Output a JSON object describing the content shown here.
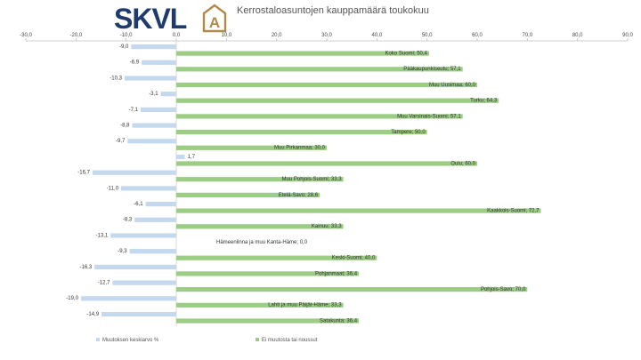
{
  "header": {
    "logo_text": "SKVL",
    "title": "Kerrostaloasuntojen kauppamäärä toukokuu"
  },
  "chart_data": {
    "type": "bar",
    "orientation": "horizontal",
    "title": "Kerrostaloasuntojen kauppamäärä toukokuu",
    "xlim": [
      -30,
      90
    ],
    "xticks": [
      -30,
      -20,
      -10,
      0,
      10,
      20,
      30,
      40,
      50,
      60,
      70,
      80,
      90
    ],
    "xtick_labels": [
      "-30,0",
      "-20,0",
      "-10,0",
      "0,0",
      "10,0",
      "20,0",
      "30,0",
      "40,0",
      "50,0",
      "60,0",
      "70,0",
      "80,0",
      "90,0"
    ],
    "legend_position": "bottom",
    "categories": [
      "Koko Suomi",
      "Pääkaupunkiseutu",
      "Muu Uusimaa",
      "Turku",
      "Muu Varsinais-Suomi",
      "Tampere",
      "Muu Pirkanmaa",
      "Oulu",
      "Muu Pohjois-Suomi",
      "Etelä-Savo",
      "Kaakkois-Suomi",
      "Kainuu",
      "Hämeenlinna ja muu Kanta-Häme",
      "Keski-Suomi",
      "Pohjanmaat",
      "Pohjois-Savo",
      "Lahti ja muu Päijät-Häme",
      "Satakunta"
    ],
    "series": [
      {
        "name": "Muutoksen keskiarvo %",
        "color": "#c5d9ee",
        "values": [
          -9.0,
          -6.9,
          -10.3,
          -3.1,
          -7.1,
          -8.8,
          -9.7,
          1.7,
          -16.7,
          -11.0,
          -6.1,
          -8.3,
          -13.1,
          -9.3,
          -16.3,
          -12.7,
          -19.0,
          -14.9
        ],
        "labels": [
          "-9,0",
          "-6,9",
          "-10,3",
          "-3,1",
          "-7,1",
          "-8,8",
          "-9,7",
          "1,7",
          "-16,7",
          "-11,0",
          "-6,1",
          "-8,3",
          "-13,1",
          "-9,3",
          "-16,3",
          "-12,7",
          "-19,0",
          "-14,9"
        ]
      },
      {
        "name": "Ei muutosta tai noussut",
        "color": "#9bcd84",
        "values": [
          50.4,
          57.1,
          60.0,
          64.3,
          57.1,
          50.0,
          30.0,
          60.0,
          33.3,
          28.6,
          72.7,
          33.3,
          0.0,
          40.0,
          36.4,
          70.0,
          33.3,
          36.4
        ],
        "labels": [
          "Koko Suomi; 50,4",
          "Pääkaupunkiseutu; 57,1",
          "Muu Uusimaa; 60,0",
          "Turku; 64,3",
          "Muu Varsinais-Suomi; 57,1",
          "Tampere; 50,0",
          "Muu Pirkanmaa; 30,0",
          "Oulu; 60,0",
          "Muu Pohjois-Suomi; 33,3",
          "Etelä-Savo; 28,6",
          "Kaakkois-Suomi; 72,7",
          "Kainuu; 33,3",
          "Hämeenlinna ja muu Kanta-Häme; 0,0",
          "Keski-Suomi; 40,0",
          "Pohjanmaat; 36,4",
          "Pohjois-Savo; 70,0",
          "Lahti ja muu Päijät-Häme; 33,3",
          "Satakunta; 36,4"
        ]
      }
    ]
  }
}
